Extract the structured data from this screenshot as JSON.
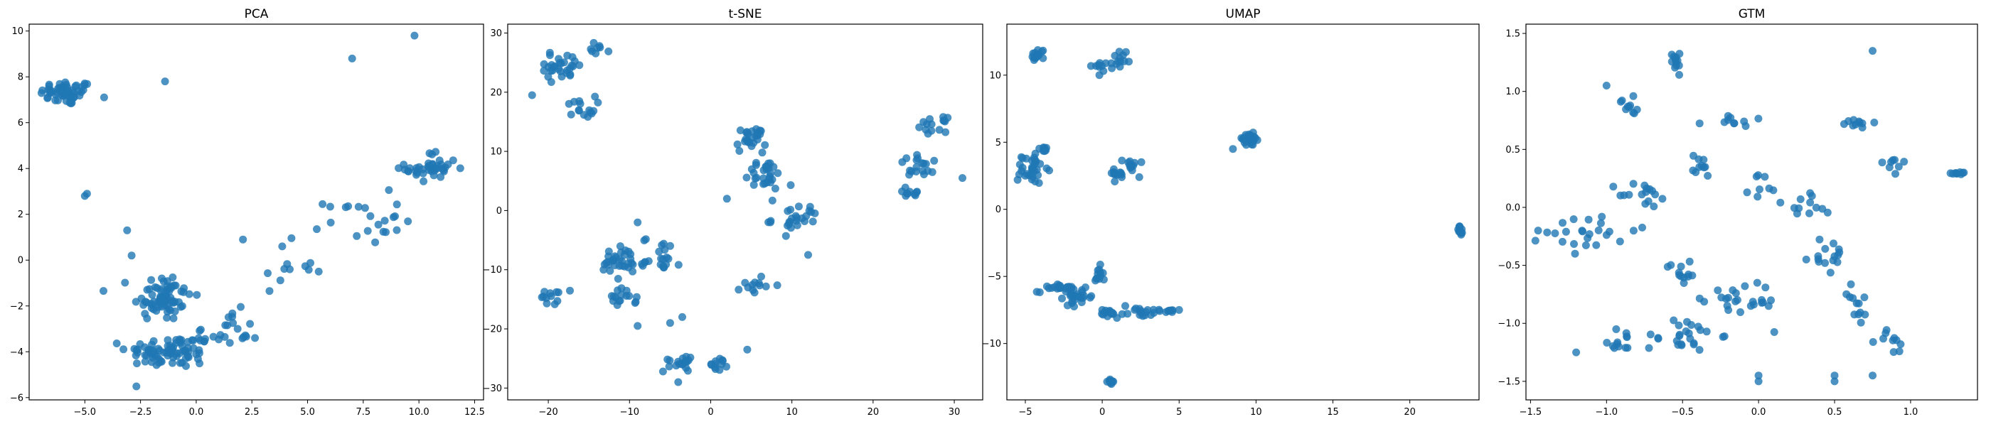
{
  "colors": {
    "point": "#1f77b4",
    "axis": "#000000",
    "background": "#ffffff"
  },
  "chart_data": [
    {
      "type": "scatter",
      "title": "PCA",
      "xlim": [
        -7.5,
        12.9
      ],
      "ylim": [
        -6.1,
        10.3
      ],
      "xticks": [
        -5.0,
        -2.5,
        0.0,
        2.5,
        5.0,
        7.5,
        10.0,
        12.5
      ],
      "xtick_labels": [
        "−5.0",
        "−2.5",
        "0.0",
        "2.5",
        "5.0",
        "7.5",
        "10.0",
        "12.5"
      ],
      "yticks": [
        -6,
        -4,
        -2,
        0,
        2,
        4,
        6,
        8,
        10
      ],
      "ytick_labels": [
        "−6",
        "−4",
        "−2",
        "0",
        "2",
        "4",
        "6",
        "8",
        "10"
      ],
      "clusters": [
        {
          "center": [
            -5.8,
            7.3
          ],
          "spread": [
            1.0,
            0.45
          ],
          "count": 55
        },
        {
          "center": [
            -1.5,
            -1.6
          ],
          "spread": [
            1.1,
            0.9
          ],
          "count": 70
        },
        {
          "center": [
            -1.2,
            -4.0
          ],
          "spread": [
            1.6,
            0.6
          ],
          "count": 80
        },
        {
          "center": [
            1.3,
            -3.2
          ],
          "spread": [
            1.3,
            0.8
          ],
          "count": 25
        },
        {
          "center": [
            3.8,
            -0.3
          ],
          "spread": [
            1.3,
            0.9
          ],
          "count": 10
        },
        {
          "center": [
            7.5,
            1.8
          ],
          "spread": [
            1.4,
            0.9
          ],
          "count": 22
        },
        {
          "center": [
            10.6,
            4.0
          ],
          "spread": [
            1.0,
            0.6
          ],
          "count": 40
        }
      ],
      "points": [
        [
          -5.0,
          2.8
        ],
        [
          -4.9,
          2.9
        ],
        [
          7.0,
          8.8
        ],
        [
          9.8,
          9.8
        ],
        [
          -1.4,
          7.8
        ],
        [
          -3.1,
          1.3
        ],
        [
          -2.9,
          0.2
        ],
        [
          2.1,
          0.9
        ],
        [
          4.2,
          -0.4
        ],
        [
          5.5,
          -0.5
        ]
      ]
    },
    {
      "type": "scatter",
      "title": "t-SNE",
      "xlim": [
        -25.0,
        33.5
      ],
      "ylim": [
        -32.0,
        31.5
      ],
      "xticks": [
        -20,
        -10,
        0,
        10,
        20,
        30
      ],
      "xtick_labels": [
        "−20",
        "−10",
        "0",
        "10",
        "20",
        "30"
      ],
      "yticks": [
        -30,
        -20,
        -10,
        0,
        10,
        20,
        30
      ],
      "ytick_labels": [
        "−30",
        "−20",
        "−10",
        "0",
        "10",
        "20",
        "30"
      ],
      "clusters": [
        {
          "center": [
            -18.5,
            24.5
          ],
          "spread": [
            2.5,
            2.0
          ],
          "count": 30
        },
        {
          "center": [
            -13.5,
            27.5
          ],
          "spread": [
            1.0,
            0.8
          ],
          "count": 8
        },
        {
          "center": [
            -16.0,
            17.5
          ],
          "spread": [
            1.5,
            1.5
          ],
          "count": 15
        },
        {
          "center": [
            5.0,
            12.0
          ],
          "spread": [
            1.5,
            1.8
          ],
          "count": 25
        },
        {
          "center": [
            6.5,
            6.0
          ],
          "spread": [
            2.0,
            2.5
          ],
          "count": 30
        },
        {
          "center": [
            10.5,
            -1.5
          ],
          "spread": [
            2.5,
            2.0
          ],
          "count": 25
        },
        {
          "center": [
            27.5,
            14.5
          ],
          "spread": [
            1.3,
            1.0
          ],
          "count": 15
        },
        {
          "center": [
            26.0,
            7.5
          ],
          "spread": [
            2.5,
            1.5
          ],
          "count": 18
        },
        {
          "center": [
            25.0,
            3.0
          ],
          "spread": [
            2.5,
            0.8
          ],
          "count": 10
        },
        {
          "center": [
            -11.0,
            -9.0
          ],
          "spread": [
            2.5,
            2.5
          ],
          "count": 35
        },
        {
          "center": [
            -6.0,
            -7.5
          ],
          "spread": [
            2.0,
            2.5
          ],
          "count": 20
        },
        {
          "center": [
            -19.5,
            -14.5
          ],
          "spread": [
            1.2,
            1.2
          ],
          "count": 12
        },
        {
          "center": [
            -11.0,
            -15.0
          ],
          "spread": [
            1.5,
            1.2
          ],
          "count": 15
        },
        {
          "center": [
            -4.0,
            -25.5
          ],
          "spread": [
            1.5,
            1.5
          ],
          "count": 18
        },
        {
          "center": [
            1.0,
            -26.0
          ],
          "spread": [
            1.0,
            0.8
          ],
          "count": 12
        },
        {
          "center": [
            5.5,
            -12.5
          ],
          "spread": [
            1.5,
            1.5
          ],
          "count": 12
        }
      ],
      "points": [
        [
          -22.0,
          19.5
        ],
        [
          2.0,
          2.0
        ],
        [
          12.0,
          -7.5
        ],
        [
          -9.0,
          -19.5
        ],
        [
          -4.0,
          -29.0
        ],
        [
          4.5,
          -23.5
        ],
        [
          -5.0,
          -19.0
        ],
        [
          -9.0,
          -2.0
        ],
        [
          31.0,
          5.5
        ],
        [
          -3.5,
          -18.0
        ]
      ]
    },
    {
      "type": "scatter",
      "title": "UMAP",
      "xlim": [
        -6.2,
        24.5
      ],
      "ylim": [
        -14.2,
        13.8
      ],
      "xticks": [
        -5,
        0,
        5,
        10,
        15,
        20
      ],
      "xtick_labels": [
        "−5",
        "0",
        "5",
        "10",
        "15",
        "20"
      ],
      "yticks": [
        -10,
        -5,
        0,
        5,
        10
      ],
      "yticklabels_note": "",
      "ytick_labels": [
        "−10",
        "−5",
        "0",
        "5",
        "10"
      ],
      "clusters": [
        {
          "center": [
            -4.2,
            11.5
          ],
          "spread": [
            0.4,
            0.4
          ],
          "count": 15
        },
        {
          "center": [
            0.0,
            10.7
          ],
          "spread": [
            0.6,
            0.3
          ],
          "count": 10
        },
        {
          "center": [
            1.2,
            11.2
          ],
          "spread": [
            0.4,
            0.6
          ],
          "count": 12
        },
        {
          "center": [
            -4.5,
            3.0
          ],
          "spread": [
            0.6,
            0.9
          ],
          "count": 30
        },
        {
          "center": [
            -4.0,
            4.3
          ],
          "spread": [
            0.3,
            0.3
          ],
          "count": 8
        },
        {
          "center": [
            0.8,
            2.5
          ],
          "spread": [
            0.6,
            0.6
          ],
          "count": 12
        },
        {
          "center": [
            2.0,
            3.3
          ],
          "spread": [
            0.5,
            0.5
          ],
          "count": 12
        },
        {
          "center": [
            9.5,
            5.2
          ],
          "spread": [
            0.7,
            0.4
          ],
          "count": 25
        },
        {
          "center": [
            23.3,
            -1.6
          ],
          "spread": [
            0.2,
            0.3
          ],
          "count": 12
        },
        {
          "center": [
            -3.0,
            -5.8
          ],
          "spread": [
            1.0,
            0.3
          ],
          "count": 20
        },
        {
          "center": [
            -1.5,
            -6.5
          ],
          "spread": [
            0.8,
            0.5
          ],
          "count": 25
        },
        {
          "center": [
            -0.3,
            -5.0
          ],
          "spread": [
            0.3,
            0.6
          ],
          "count": 12
        },
        {
          "center": [
            0.5,
            -7.8
          ],
          "spread": [
            0.6,
            0.3
          ],
          "count": 15
        },
        {
          "center": [
            2.8,
            -7.7
          ],
          "spread": [
            0.9,
            0.3
          ],
          "count": 15
        },
        {
          "center": [
            4.3,
            -7.6
          ],
          "spread": [
            0.4,
            0.2
          ],
          "count": 8
        },
        {
          "center": [
            0.5,
            -12.8
          ],
          "spread": [
            0.3,
            0.2
          ],
          "count": 10
        }
      ],
      "points": [
        [
          -5.5,
          2.2
        ],
        [
          -5.4,
          2.6
        ],
        [
          0.0,
          -7.5
        ],
        [
          1.5,
          -7.2
        ],
        [
          5.0,
          -7.5
        ],
        [
          8.5,
          4.5
        ]
      ]
    },
    {
      "type": "scatter",
      "title": "GTM",
      "xlim": [
        -1.53,
        1.44
      ],
      "ylim": [
        -1.66,
        1.58
      ],
      "xticks": [
        -1.5,
        -1.0,
        -0.5,
        0.0,
        0.5,
        1.0
      ],
      "xtick_labels": [
        "−1.5",
        "−1.0",
        "−0.5",
        "0.0",
        "0.5",
        "1.0"
      ],
      "yticks": [
        -1.5,
        -1.0,
        -0.5,
        0.0,
        0.5,
        1.0,
        1.5
      ],
      "ytick_labels": [
        "−1.5",
        "−1.0",
        "−0.5",
        "0.0",
        "0.5",
        "1.0",
        "1.5"
      ],
      "clusters": [
        {
          "center": [
            -0.55,
            1.3
          ],
          "spread": [
            0.05,
            0.1
          ],
          "count": 12
        },
        {
          "center": [
            -0.85,
            0.85
          ],
          "spread": [
            0.05,
            0.1
          ],
          "count": 10
        },
        {
          "center": [
            -0.2,
            0.75
          ],
          "spread": [
            0.15,
            0.04
          ],
          "count": 10
        },
        {
          "center": [
            0.7,
            0.72
          ],
          "spread": [
            0.12,
            0.05
          ],
          "count": 10
        },
        {
          "center": [
            1.3,
            0.3
          ],
          "spread": [
            0.04,
            0.02
          ],
          "count": 8
        },
        {
          "center": [
            -1.1,
            -0.2
          ],
          "spread": [
            0.25,
            0.15
          ],
          "count": 25
        },
        {
          "center": [
            -0.75,
            0.1
          ],
          "spread": [
            0.15,
            0.1
          ],
          "count": 15
        },
        {
          "center": [
            -0.5,
            -0.55
          ],
          "spread": [
            0.1,
            0.1
          ],
          "count": 12
        },
        {
          "center": [
            -0.5,
            -1.1
          ],
          "spread": [
            0.2,
            0.12
          ],
          "count": 25
        },
        {
          "center": [
            -0.2,
            -0.8
          ],
          "spread": [
            0.1,
            0.1
          ],
          "count": 10
        },
        {
          "center": [
            0.0,
            -0.85
          ],
          "spread": [
            0.12,
            0.2
          ],
          "count": 15
        },
        {
          "center": [
            0.45,
            -0.4
          ],
          "spread": [
            0.1,
            0.15
          ],
          "count": 15
        },
        {
          "center": [
            0.65,
            -0.85
          ],
          "spread": [
            0.06,
            0.15
          ],
          "count": 12
        },
        {
          "center": [
            0.3,
            0.0
          ],
          "spread": [
            0.2,
            0.15
          ],
          "count": 12
        },
        {
          "center": [
            -0.4,
            0.35
          ],
          "spread": [
            0.1,
            0.08
          ],
          "count": 10
        },
        {
          "center": [
            0.9,
            0.35
          ],
          "spread": [
            0.1,
            0.08
          ],
          "count": 8
        },
        {
          "center": [
            -0.9,
            -1.15
          ],
          "spread": [
            0.1,
            0.08
          ],
          "count": 12
        },
        {
          "center": [
            0.9,
            -1.15
          ],
          "spread": [
            0.1,
            0.1
          ],
          "count": 10
        },
        {
          "center": [
            0.0,
            0.2
          ],
          "spread": [
            0.1,
            0.1
          ],
          "count": 8
        }
      ],
      "points": [
        [
          -1.0,
          1.05
        ],
        [
          0.75,
          1.35
        ],
        [
          -1.45,
          -0.2
        ],
        [
          -1.2,
          -1.25
        ],
        [
          0.0,
          -1.45
        ],
        [
          0.0,
          -1.5
        ],
        [
          0.5,
          -1.45
        ],
        [
          0.5,
          -1.5
        ],
        [
          1.35,
          0.3
        ],
        [
          0.75,
          -1.45
        ]
      ]
    }
  ]
}
